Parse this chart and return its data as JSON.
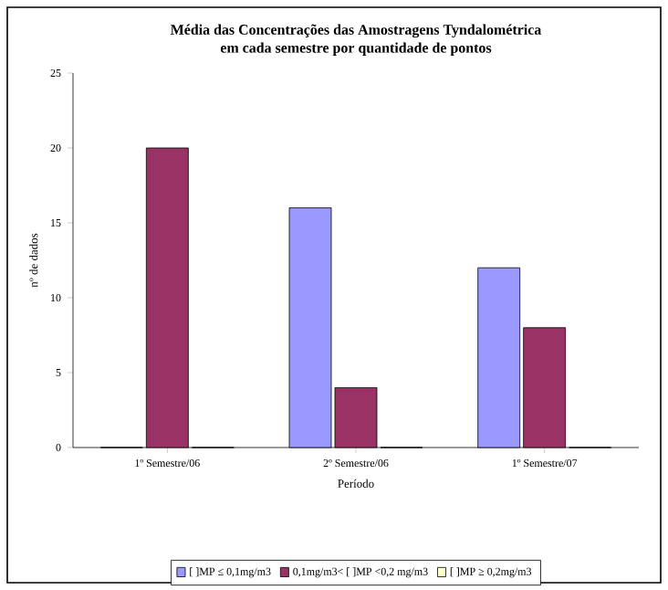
{
  "chart_data": {
    "type": "bar",
    "title": "Média das Concentrações das Amostragens Tyndalométrica\nem cada semestre por quantidade de pontos",
    "xlabel": "Período",
    "ylabel": "nº de dados",
    "categories": [
      "1º Semestre/06",
      "2º Semestre/06",
      "1º Semestre/07"
    ],
    "series": [
      {
        "name": "[ ]MP ≤ 0,1mg/m3",
        "color": "#9999ff",
        "values": [
          0,
          16,
          12
        ]
      },
      {
        "name": "0,1mg/m3< [ ]MP <0,2 mg/m3",
        "color": "#993366",
        "values": [
          20,
          4,
          8
        ]
      },
      {
        "name": "[ ]MP ≥ 0,2mg/m3",
        "color": "#ffffcc",
        "values": [
          0,
          0,
          0
        ]
      }
    ],
    "ylim": [
      0,
      25
    ],
    "yticks": [
      0,
      5,
      10,
      15,
      20,
      25
    ],
    "grid": false,
    "legend": "bottom"
  }
}
